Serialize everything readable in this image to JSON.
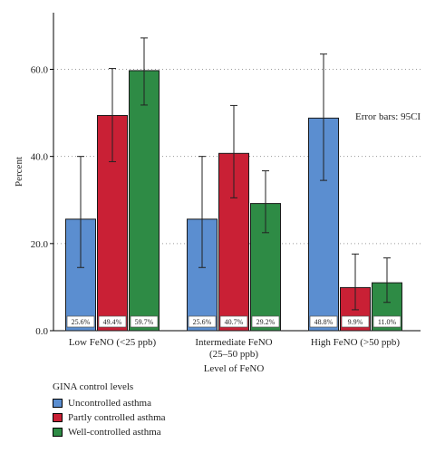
{
  "chart_data": {
    "type": "bar",
    "ylabel": "Percent",
    "xlabel": "Level of FeNO",
    "ylim": [
      0,
      73
    ],
    "yticks": [
      0,
      20,
      40,
      60
    ],
    "ytick_labels": [
      "0.0",
      "20.0",
      "40.0",
      "60.0"
    ],
    "grid": "horizontal dotted",
    "categories": [
      [
        "Low FeNO (<25 ppb)"
      ],
      [
        "Intermediate FeNO",
        "(25–50 ppb)"
      ],
      [
        "High FeNO (>50 ppb)"
      ]
    ],
    "series": [
      {
        "name": "Uncontrolled asthma",
        "color": "#5B8ED0",
        "values": [
          25.6,
          25.6,
          48.8
        ],
        "labels": [
          "25.6%",
          "25.6%",
          "48.8%"
        ],
        "ci_low": [
          14.5,
          14.5,
          34.5
        ],
        "ci_high": [
          40.0,
          40.0,
          63.5
        ]
      },
      {
        "name": "Partly controlled asthma",
        "color": "#C92035",
        "values": [
          49.4,
          40.7,
          9.9
        ],
        "labels": [
          "49.4%",
          "40.7%",
          "9.9%"
        ],
        "ci_low": [
          38.8,
          30.5,
          4.8
        ],
        "ci_high": [
          60.2,
          51.7,
          17.6
        ]
      },
      {
        "name": "Well-controlled asthma",
        "color": "#2E8B45",
        "values": [
          59.7,
          29.2,
          11.0
        ],
        "labels": [
          "59.7%",
          "29.2%",
          "11.0%"
        ],
        "ci_low": [
          51.8,
          22.5,
          6.5
        ],
        "ci_high": [
          67.2,
          36.7,
          16.7
        ]
      }
    ],
    "annotation": "Error bars: 95CI",
    "legend_title": "GINA control levels",
    "legend_position": "bottom-left"
  }
}
